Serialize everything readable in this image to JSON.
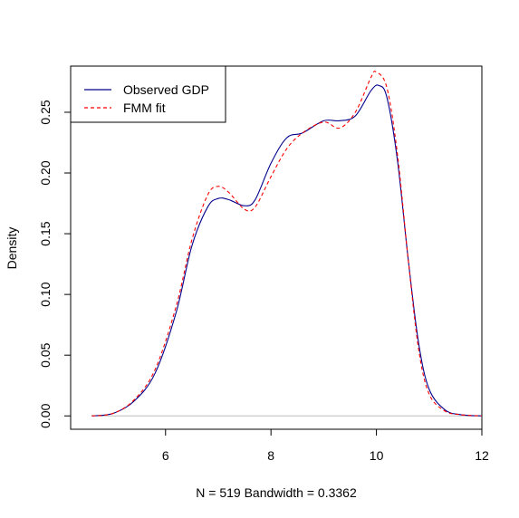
{
  "chart_data": {
    "type": "line",
    "title": "",
    "xlabel": "N = 519   Bandwidth = 0.3362",
    "ylabel": "Density",
    "xlim": [
      4.2,
      12.0
    ],
    "ylim": [
      -0.011,
      0.288
    ],
    "x_ticks": [
      6,
      8,
      10,
      12
    ],
    "y_ticks": [
      0.0,
      0.05,
      0.1,
      0.15,
      0.2,
      0.25
    ],
    "x_tick_labels": [
      "6",
      "8",
      "10",
      "12"
    ],
    "y_tick_labels": [
      "0.00",
      "0.05",
      "0.10",
      "0.15",
      "0.20",
      "0.25"
    ],
    "baseline": 0,
    "grid": false,
    "legend_position": "top-left",
    "series": [
      {
        "name": "Observed GDP",
        "color": "#00008B",
        "line_style": "solid",
        "x": [
          4.6,
          5.0,
          5.4,
          5.8,
          6.2,
          6.5,
          6.8,
          7.0,
          7.2,
          7.5,
          7.7,
          8.0,
          8.3,
          8.6,
          9.0,
          9.3,
          9.6,
          9.9,
          10.05,
          10.2,
          10.4,
          10.6,
          10.8,
          11.0,
          11.3,
          11.6,
          12.0
        ],
        "y": [
          0.0,
          0.002,
          0.012,
          0.035,
          0.085,
          0.14,
          0.172,
          0.179,
          0.178,
          0.173,
          0.178,
          0.208,
          0.229,
          0.233,
          0.243,
          0.243,
          0.247,
          0.268,
          0.272,
          0.262,
          0.21,
          0.13,
          0.06,
          0.022,
          0.005,
          0.001,
          0.0
        ]
      },
      {
        "name": "FMM fit",
        "color": "#FF0000",
        "line_style": "dashed",
        "x": [
          4.6,
          5.0,
          5.4,
          5.8,
          6.2,
          6.5,
          6.8,
          7.0,
          7.2,
          7.5,
          7.7,
          8.0,
          8.3,
          8.6,
          9.0,
          9.3,
          9.6,
          9.9,
          10.0,
          10.2,
          10.4,
          10.6,
          10.8,
          11.0,
          11.3,
          11.6,
          12.0
        ],
        "y": [
          0.0,
          0.002,
          0.013,
          0.038,
          0.09,
          0.145,
          0.182,
          0.189,
          0.184,
          0.17,
          0.172,
          0.197,
          0.22,
          0.233,
          0.242,
          0.237,
          0.25,
          0.279,
          0.283,
          0.27,
          0.215,
          0.13,
          0.055,
          0.018,
          0.004,
          0.001,
          0.0
        ]
      }
    ]
  }
}
